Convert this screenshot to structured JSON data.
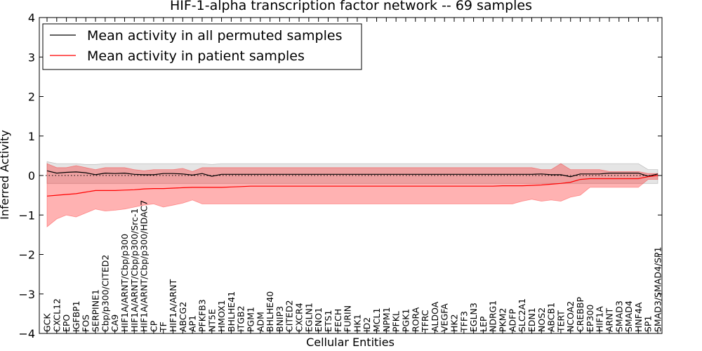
{
  "chart_data": {
    "type": "line",
    "title": "HIF-1-alpha transcription factor network -- 69 samples",
    "xlabel": "Cellular Entities",
    "ylabel": "Inferred Activity",
    "ylim": [
      -4,
      4
    ],
    "yticks": [
      -4,
      -3,
      -2,
      -1,
      0,
      1,
      2,
      3,
      4
    ],
    "grid": false,
    "legend_position": "top-left",
    "categories": [
      "GCK",
      "CXCL12",
      "EPO",
      "IGFBP1",
      "FOS",
      "SERPINE1",
      "Cbp/p300/CITED2",
      "CA9",
      "HIF1A/ARNT/Cbp/p300",
      "HIF1A/ARNT/Cbp/p300/Src-1",
      "HIF1A/ARNT/Cbp/p300/HDAC7",
      "CP",
      "TF",
      "HIF1A/ARNT",
      "ABCG2",
      "AP1",
      "PFKFB3",
      "NT5E",
      "HMOX1",
      "BHLHE41",
      "ITGB2",
      "PGM1",
      "ADM",
      "BHLHE40",
      "BNIP3",
      "CITED2",
      "CXCR4",
      "EGLN1",
      "ENO1",
      "ETS1",
      "FECH",
      "FURIN",
      "HK1",
      "ID2",
      "MCL1",
      "NPM1",
      "PFKL",
      "PGK1",
      "RORA",
      "TFRC",
      "ALDOA",
      "VEGFA",
      "HK2",
      "TFF3",
      "EGLN3",
      "LEP",
      "NDRG1",
      "PKM2",
      "ADFP",
      "SLC2A1",
      "EDN1",
      "NOS2",
      "ABCB1",
      "TERT",
      "NCOA2",
      "CREBBP",
      "EP300",
      "HIF1A",
      "ARNT",
      "SMAD3",
      "SMAD4",
      "HNF4A",
      "SP1",
      "SMAD3/SMAD4/SP1"
    ],
    "series": [
      {
        "name": "Mean activity in all permuted samples",
        "color": "#000000",
        "values": [
          0.12,
          0.06,
          0.08,
          0.09,
          0.07,
          0.02,
          0.06,
          0.05,
          0.06,
          0.03,
          0.02,
          0.02,
          0.05,
          0.05,
          0.04,
          0.01,
          0.05,
          -0.02,
          0.03,
          0.03,
          0.03,
          0.03,
          0.03,
          0.03,
          0.03,
          0.03,
          0.03,
          0.03,
          0.03,
          0.03,
          0.03,
          0.03,
          0.03,
          0.03,
          0.03,
          0.03,
          0.03,
          0.03,
          0.03,
          0.03,
          0.03,
          0.03,
          0.03,
          0.03,
          0.03,
          0.03,
          0.03,
          0.03,
          0.03,
          0.03,
          0.03,
          0.04,
          0.02,
          0.02,
          -0.03,
          0.04,
          0.04,
          0.04,
          0.06,
          0.06,
          0.06,
          0.06,
          -0.02,
          0.04
        ],
        "band_lower": [
          -0.2,
          -0.2,
          -0.2,
          -0.2,
          -0.2,
          -0.2,
          -0.2,
          -0.2,
          -0.2,
          -0.2,
          -0.2,
          -0.2,
          -0.2,
          -0.2,
          -0.2,
          -0.2,
          -0.2,
          -0.2,
          -0.2,
          -0.2,
          -0.2,
          -0.2,
          -0.2,
          -0.2,
          -0.2,
          -0.2,
          -0.2,
          -0.2,
          -0.2,
          -0.2,
          -0.2,
          -0.2,
          -0.2,
          -0.2,
          -0.2,
          -0.2,
          -0.2,
          -0.2,
          -0.2,
          -0.2,
          -0.2,
          -0.2,
          -0.2,
          -0.2,
          -0.2,
          -0.2,
          -0.2,
          -0.2,
          -0.2,
          -0.2,
          -0.2,
          -0.2,
          -0.2,
          -0.2,
          -0.2,
          -0.2,
          -0.2,
          -0.2,
          -0.2,
          -0.2,
          -0.2,
          -0.2,
          -0.2,
          -0.2
        ],
        "band_upper": [
          0.35,
          0.3,
          0.3,
          0.3,
          0.28,
          0.28,
          0.3,
          0.3,
          0.3,
          0.3,
          0.3,
          0.3,
          0.3,
          0.3,
          0.3,
          0.3,
          0.3,
          0.28,
          0.3,
          0.3,
          0.3,
          0.3,
          0.3,
          0.3,
          0.3,
          0.3,
          0.3,
          0.3,
          0.3,
          0.3,
          0.3,
          0.3,
          0.3,
          0.3,
          0.3,
          0.3,
          0.3,
          0.3,
          0.3,
          0.3,
          0.3,
          0.3,
          0.3,
          0.3,
          0.3,
          0.3,
          0.3,
          0.3,
          0.3,
          0.3,
          0.3,
          0.3,
          0.3,
          0.3,
          0.3,
          0.3,
          0.3,
          0.3,
          0.3,
          0.3,
          0.3,
          0.3,
          0.15,
          0.15
        ]
      },
      {
        "name": "Mean activity in patient samples",
        "color": "#ff0000",
        "values": [
          -0.52,
          -0.5,
          -0.48,
          -0.46,
          -0.42,
          -0.38,
          -0.38,
          -0.38,
          -0.37,
          -0.36,
          -0.34,
          -0.33,
          -0.33,
          -0.32,
          -0.31,
          -0.3,
          -0.3,
          -0.3,
          -0.3,
          -0.29,
          -0.28,
          -0.27,
          -0.27,
          -0.27,
          -0.27,
          -0.27,
          -0.27,
          -0.27,
          -0.27,
          -0.27,
          -0.27,
          -0.27,
          -0.27,
          -0.27,
          -0.27,
          -0.27,
          -0.27,
          -0.27,
          -0.27,
          -0.27,
          -0.27,
          -0.27,
          -0.27,
          -0.27,
          -0.27,
          -0.27,
          -0.27,
          -0.26,
          -0.26,
          -0.26,
          -0.25,
          -0.24,
          -0.22,
          -0.2,
          -0.17,
          -0.1,
          -0.08,
          -0.08,
          -0.08,
          -0.08,
          -0.08,
          -0.08,
          -0.03,
          0.0
        ],
        "band_lower": [
          -1.3,
          -1.1,
          -1.0,
          -1.05,
          -0.95,
          -0.85,
          -0.9,
          -0.88,
          -0.85,
          -0.8,
          -0.75,
          -0.72,
          -0.8,
          -0.75,
          -0.7,
          -0.62,
          -0.72,
          -0.72,
          -0.72,
          -0.72,
          -0.72,
          -0.72,
          -0.72,
          -0.72,
          -0.72,
          -0.72,
          -0.72,
          -0.72,
          -0.72,
          -0.72,
          -0.72,
          -0.72,
          -0.72,
          -0.72,
          -0.72,
          -0.72,
          -0.72,
          -0.72,
          -0.72,
          -0.72,
          -0.72,
          -0.72,
          -0.72,
          -0.72,
          -0.72,
          -0.72,
          -0.72,
          -0.72,
          -0.72,
          -0.65,
          -0.6,
          -0.65,
          -0.62,
          -0.65,
          -0.55,
          -0.5,
          -0.3,
          -0.3,
          -0.3,
          -0.3,
          -0.3,
          -0.3,
          -0.1,
          -0.1
        ],
        "band_upper": [
          0.3,
          0.2,
          0.2,
          0.25,
          0.2,
          0.15,
          0.2,
          0.2,
          0.2,
          0.15,
          0.12,
          0.15,
          0.15,
          0.15,
          0.18,
          0.1,
          0.2,
          0.2,
          0.2,
          0.2,
          0.2,
          0.2,
          0.2,
          0.2,
          0.2,
          0.2,
          0.2,
          0.2,
          0.2,
          0.2,
          0.2,
          0.2,
          0.2,
          0.2,
          0.2,
          0.2,
          0.2,
          0.2,
          0.2,
          0.2,
          0.2,
          0.2,
          0.2,
          0.2,
          0.2,
          0.2,
          0.2,
          0.2,
          0.2,
          0.2,
          0.2,
          0.15,
          0.15,
          0.3,
          0.15,
          0.15,
          0.15,
          0.15,
          0.1,
          0.1,
          0.1,
          0.1,
          0.05,
          0.05
        ]
      }
    ]
  }
}
